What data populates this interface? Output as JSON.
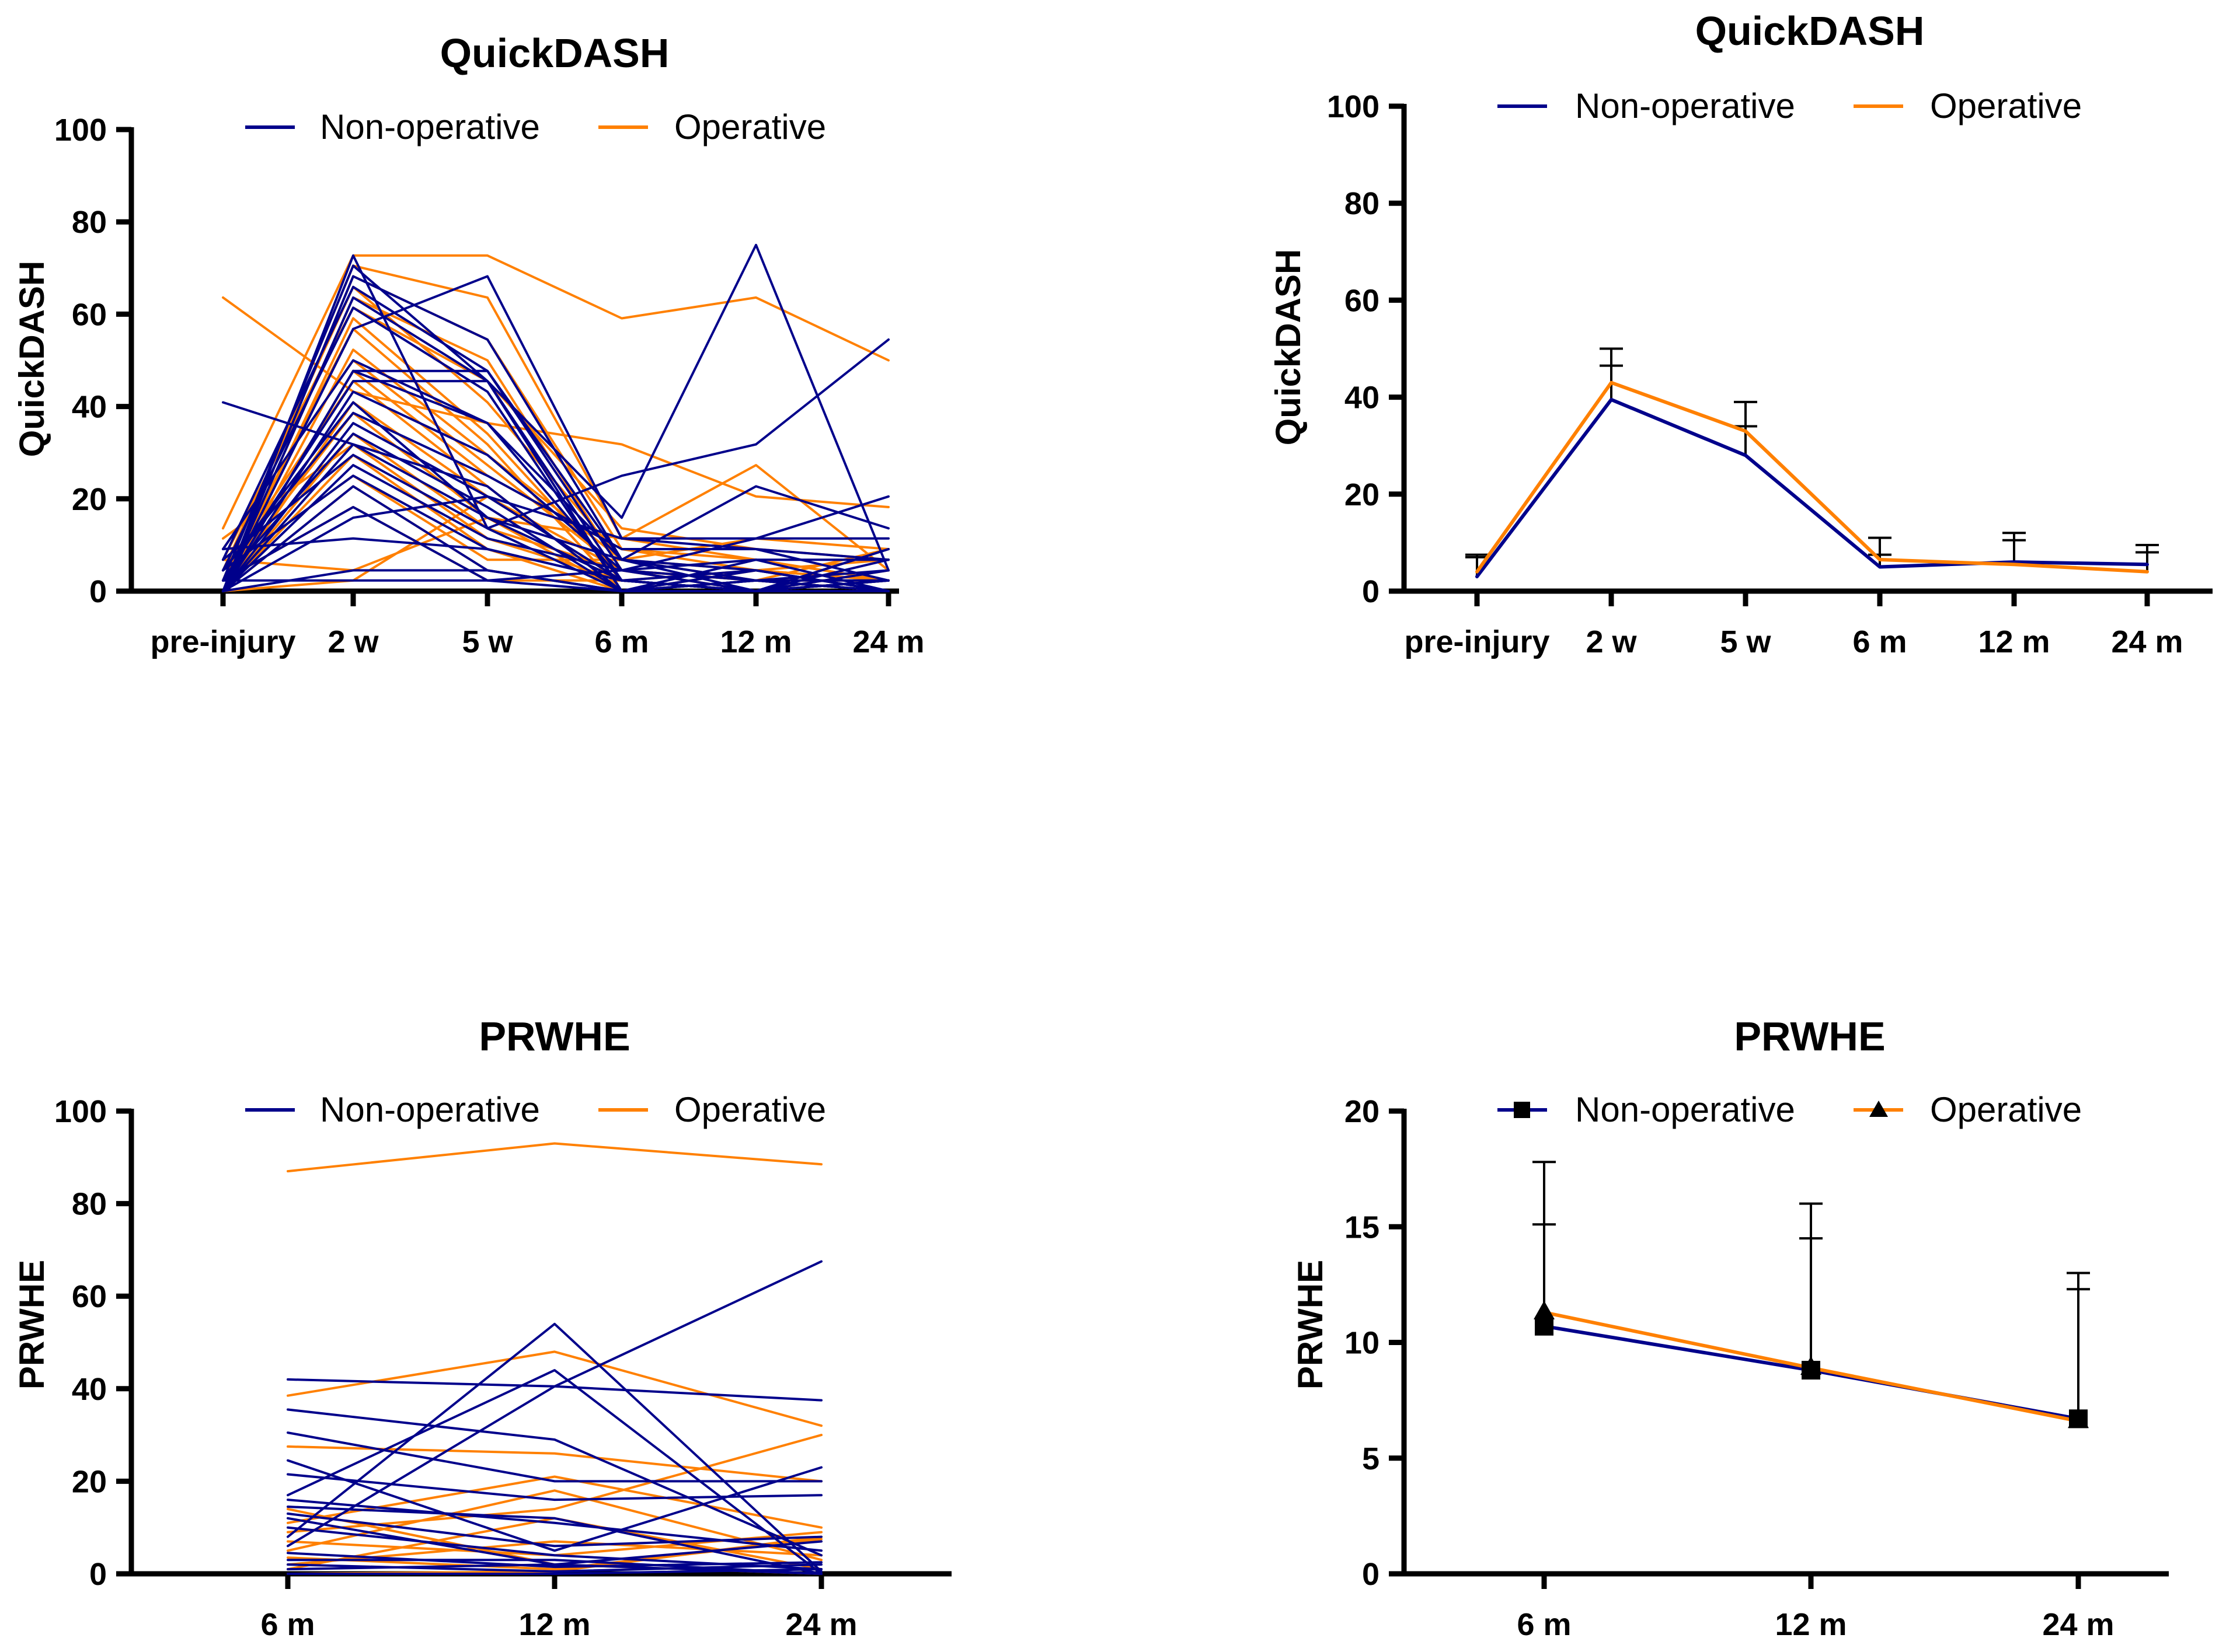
{
  "colors": {
    "non_operative": "#00008B",
    "operative": "#FF8000",
    "axis": "#000000"
  },
  "chart_data": [
    {
      "id": "A",
      "type": "line",
      "title": "QuickDASH",
      "xlabel": "",
      "ylabel": "QuickDASH",
      "categories": [
        "pre-injury",
        "2 w",
        "5 w",
        "6 m",
        "12 m",
        "24 m"
      ],
      "ylim": [
        0,
        100
      ],
      "yticks": [
        0,
        20,
        40,
        60,
        80,
        100
      ],
      "legend": {
        "position": "top",
        "entries": [
          {
            "name": "Non-operative",
            "color": "#00008B",
            "marker": "none"
          },
          {
            "name": "Operative",
            "color": "#FF8000",
            "marker": "none"
          }
        ]
      },
      "line_width": 4,
      "series": [
        {
          "group": "Operative",
          "values": [
            63.6,
            43.2,
            36.4,
            31.8,
            20.5,
            18.2
          ]
        },
        {
          "group": "Operative",
          "values": [
            13.6,
            72.7,
            72.7,
            59.1,
            63.6,
            50.0
          ]
        },
        {
          "group": "Operative",
          "values": [
            2.3,
            70.5,
            63.6,
            11.4,
            27.3,
            4.5
          ]
        },
        {
          "group": "Operative",
          "values": [
            0.0,
            68.2,
            54.5,
            9.1,
            6.8,
            2.3
          ]
        },
        {
          "group": "Operative",
          "values": [
            4.5,
            65.9,
            40.9,
            6.8,
            4.5,
            0.0
          ]
        },
        {
          "group": "Operative",
          "values": [
            0.0,
            63.6,
            50.0,
            4.5,
            2.3,
            0.0
          ]
        },
        {
          "group": "Operative",
          "values": [
            6.8,
            61.4,
            45.5,
            13.6,
            9.1,
            6.8
          ]
        },
        {
          "group": "Operative",
          "values": [
            0.0,
            59.1,
            34.1,
            2.3,
            0.0,
            2.3
          ]
        },
        {
          "group": "Operative",
          "values": [
            2.3,
            56.8,
            31.8,
            0.0,
            0.0,
            0.0
          ]
        },
        {
          "group": "Operative",
          "values": [
            0.0,
            52.3,
            29.5,
            6.8,
            11.4,
            9.1
          ]
        },
        {
          "group": "Operative",
          "values": [
            9.1,
            50.0,
            27.3,
            4.5,
            2.3,
            2.3
          ]
        },
        {
          "group": "Operative",
          "values": [
            0.0,
            47.7,
            25.0,
            9.1,
            4.5,
            2.3
          ]
        },
        {
          "group": "Operative",
          "values": [
            4.5,
            45.5,
            22.7,
            0.0,
            2.3,
            0.0
          ]
        },
        {
          "group": "Operative",
          "values": [
            0.0,
            40.9,
            20.5,
            2.3,
            0.0,
            4.5
          ]
        },
        {
          "group": "Operative",
          "values": [
            2.3,
            38.6,
            15.9,
            11.4,
            6.8,
            2.3
          ]
        },
        {
          "group": "Operative",
          "values": [
            0.0,
            34.1,
            13.6,
            4.5,
            0.0,
            0.0
          ]
        },
        {
          "group": "Operative",
          "values": [
            11.4,
            31.8,
            11.4,
            2.3,
            4.5,
            6.8
          ]
        },
        {
          "group": "Operative",
          "values": [
            0.0,
            29.5,
            9.1,
            0.0,
            0.0,
            0.0
          ]
        },
        {
          "group": "Operative",
          "values": [
            4.5,
            25.0,
            6.8,
            6.8,
            2.3,
            9.1
          ]
        },
        {
          "group": "Operative",
          "values": [
            0.0,
            22.7,
            4.5,
            0.0,
            0.0,
            2.3
          ]
        },
        {
          "group": "Operative",
          "values": [
            2.3,
            18.2,
            2.3,
            2.3,
            0.0,
            0.0
          ]
        },
        {
          "group": "Operative",
          "values": [
            6.8,
            4.5,
            15.9,
            0.0,
            4.5,
            2.3
          ]
        },
        {
          "group": "Operative",
          "values": [
            0.0,
            2.3,
            20.5,
            4.5,
            2.3,
            0.0
          ]
        },
        {
          "group": "Non-operative",
          "values": [
            40.9,
            31.8,
            22.7,
            0.0,
            0.0,
            0.0
          ]
        },
        {
          "group": "Non-operative",
          "values": [
            0.0,
            72.7,
            13.6,
            25.0,
            31.8,
            54.5
          ]
        },
        {
          "group": "Non-operative",
          "values": [
            2.3,
            70.5,
            45.5,
            15.9,
            75.0,
            4.5
          ]
        },
        {
          "group": "Non-operative",
          "values": [
            0.0,
            68.2,
            54.5,
            6.8,
            22.7,
            13.6
          ]
        },
        {
          "group": "Non-operative",
          "values": [
            6.8,
            65.9,
            47.7,
            4.5,
            11.4,
            20.5
          ]
        },
        {
          "group": "Non-operative",
          "values": [
            0.0,
            63.6,
            45.5,
            2.3,
            0.0,
            9.1
          ]
        },
        {
          "group": "Non-operative",
          "values": [
            4.5,
            61.4,
            43.2,
            0.0,
            2.3,
            4.5
          ]
        },
        {
          "group": "Non-operative",
          "values": [
            0.0,
            56.8,
            68.2,
            11.4,
            11.4,
            11.4
          ]
        },
        {
          "group": "Non-operative",
          "values": [
            9.1,
            50.0,
            36.4,
            2.3,
            4.5,
            0.0
          ]
        },
        {
          "group": "Non-operative",
          "values": [
            0.0,
            47.7,
            47.7,
            6.8,
            0.0,
            2.3
          ]
        },
        {
          "group": "Non-operative",
          "values": [
            2.3,
            45.5,
            45.5,
            0.0,
            6.8,
            6.8
          ]
        },
        {
          "group": "Non-operative",
          "values": [
            0.0,
            43.2,
            29.5,
            4.5,
            2.3,
            0.0
          ]
        },
        {
          "group": "Non-operative",
          "values": [
            4.5,
            38.6,
            25.0,
            9.1,
            9.1,
            2.3
          ]
        },
        {
          "group": "Non-operative",
          "values": [
            0.0,
            36.4,
            20.5,
            2.3,
            0.0,
            4.5
          ]
        },
        {
          "group": "Non-operative",
          "values": [
            2.3,
            34.1,
            18.2,
            0.0,
            4.5,
            0.0
          ]
        },
        {
          "group": "Non-operative",
          "values": [
            0.0,
            31.8,
            15.9,
            6.8,
            2.3,
            2.3
          ]
        },
        {
          "group": "Non-operative",
          "values": [
            6.8,
            29.5,
            13.6,
            0.0,
            0.0,
            6.8
          ]
        },
        {
          "group": "Non-operative",
          "values": [
            0.0,
            27.3,
            11.4,
            4.5,
            6.8,
            0.0
          ]
        },
        {
          "group": "Non-operative",
          "values": [
            4.5,
            25.0,
            9.1,
            2.3,
            0.0,
            2.3
          ]
        },
        {
          "group": "Non-operative",
          "values": [
            0.0,
            22.7,
            4.5,
            0.0,
            2.3,
            0.0
          ]
        },
        {
          "group": "Non-operative",
          "values": [
            2.3,
            18.2,
            2.3,
            4.5,
            0.0,
            0.0
          ]
        },
        {
          "group": "Non-operative",
          "values": [
            0.0,
            15.9,
            20.5,
            11.4,
            9.1,
            6.8
          ]
        },
        {
          "group": "Non-operative",
          "values": [
            9.1,
            11.4,
            9.1,
            2.3,
            0.0,
            2.3
          ]
        },
        {
          "group": "Non-operative",
          "values": [
            0.0,
            4.5,
            4.5,
            0.0,
            2.3,
            0.0
          ]
        },
        {
          "group": "Non-operative",
          "values": [
            2.3,
            2.3,
            2.3,
            0.0,
            0.0,
            0.0
          ]
        },
        {
          "group": "Non-operative",
          "values": [
            0.0,
            47.7,
            36.4,
            6.8,
            4.5,
            0.0
          ]
        },
        {
          "group": "Non-operative",
          "values": [
            4.5,
            40.9,
            15.9,
            2.3,
            0.0,
            9.1
          ]
        }
      ]
    },
    {
      "id": "B",
      "type": "line",
      "title": "QuickDASH",
      "xlabel": "",
      "ylabel": "QuickDASH",
      "categories": [
        "pre-injury",
        "2 w",
        "5 w",
        "6 m",
        "12 m",
        "24 m"
      ],
      "ylim": [
        0,
        100
      ],
      "yticks": [
        0,
        20,
        40,
        60,
        80,
        100
      ],
      "legend": {
        "position": "top",
        "entries": [
          {
            "name": "Non-operative",
            "color": "#00008B",
            "marker": "none"
          },
          {
            "name": "Operative",
            "color": "#FF8000",
            "marker": "none"
          }
        ]
      },
      "line_width": 6,
      "series": [
        {
          "name": "Non-operative",
          "values": [
            3.0,
            39.5,
            28.0,
            5.0,
            6.0,
            5.5
          ],
          "error_upper": [
            7.0,
            46.5,
            34.0,
            7.5,
            10.5,
            8.0
          ]
        },
        {
          "name": "Operative",
          "values": [
            4.0,
            43.0,
            33.0,
            6.5,
            5.5,
            4.0
          ],
          "error_upper": [
            7.5,
            50.0,
            39.0,
            11.0,
            12.0,
            9.5
          ]
        }
      ]
    },
    {
      "id": "C",
      "type": "line",
      "title": "PRWHE",
      "xlabel": "",
      "ylabel": "PRWHE",
      "categories": [
        "6 m",
        "12 m",
        "24 m"
      ],
      "ylim": [
        0,
        100
      ],
      "yticks": [
        0,
        20,
        40,
        60,
        80,
        100
      ],
      "legend": {
        "position": "top",
        "entries": [
          {
            "name": "Non-operative",
            "color": "#00008B",
            "marker": "none"
          },
          {
            "name": "Operative",
            "color": "#FF8000",
            "marker": "none"
          }
        ]
      },
      "line_width": 4,
      "series": [
        {
          "group": "Operative",
          "values": [
            87.0,
            93.0,
            88.5
          ]
        },
        {
          "group": "Operative",
          "values": [
            38.5,
            48.0,
            32.0
          ]
        },
        {
          "group": "Operative",
          "values": [
            27.5,
            26.0,
            20.0
          ]
        },
        {
          "group": "Operative",
          "values": [
            11.0,
            21.0,
            10.0
          ]
        },
        {
          "group": "Operative",
          "values": [
            9.0,
            14.0,
            30.0
          ]
        },
        {
          "group": "Operative",
          "values": [
            7.0,
            4.0,
            9.0
          ]
        },
        {
          "group": "Operative",
          "values": [
            5.0,
            18.0,
            3.0
          ]
        },
        {
          "group": "Operative",
          "values": [
            3.5,
            1.0,
            7.5
          ]
        },
        {
          "group": "Operative",
          "values": [
            1.0,
            12.0,
            1.0
          ]
        },
        {
          "group": "Operative",
          "values": [
            0.0,
            0.5,
            8.0
          ]
        },
        {
          "group": "Operative",
          "values": [
            14.0,
            2.0,
            0.0
          ]
        },
        {
          "group": "Operative",
          "values": [
            2.0,
            7.0,
            4.0
          ]
        },
        {
          "group": "Non-operative",
          "values": [
            42.0,
            40.5,
            37.5
          ]
        },
        {
          "group": "Non-operative",
          "values": [
            35.5,
            29.0,
            4.0
          ]
        },
        {
          "group": "Non-operative",
          "values": [
            30.5,
            20.0,
            20.0
          ]
        },
        {
          "group": "Non-operative",
          "values": [
            24.5,
            5.0,
            23.0
          ]
        },
        {
          "group": "Non-operative",
          "values": [
            21.5,
            16.0,
            17.0
          ]
        },
        {
          "group": "Non-operative",
          "values": [
            17.0,
            44.0,
            0.0
          ]
        },
        {
          "group": "Non-operative",
          "values": [
            16.0,
            11.0,
            5.0
          ]
        },
        {
          "group": "Non-operative",
          "values": [
            14.5,
            12.0,
            0.0
          ]
        },
        {
          "group": "Non-operative",
          "values": [
            12.0,
            2.0,
            7.0
          ]
        },
        {
          "group": "Non-operative",
          "values": [
            10.0,
            4.0,
            1.0
          ]
        },
        {
          "group": "Non-operative",
          "values": [
            8.0,
            54.0,
            0.5
          ]
        },
        {
          "group": "Non-operative",
          "values": [
            6.0,
            40.5,
            67.5
          ]
        },
        {
          "group": "Non-operative",
          "values": [
            4.5,
            1.5,
            2.5
          ]
        },
        {
          "group": "Non-operative",
          "values": [
            3.0,
            3.0,
            0.0
          ]
        },
        {
          "group": "Non-operative",
          "values": [
            2.0,
            0.5,
            2.0
          ]
        },
        {
          "group": "Non-operative",
          "values": [
            1.0,
            2.0,
            0.0
          ]
        },
        {
          "group": "Non-operative",
          "values": [
            0.0,
            0.0,
            1.0
          ]
        },
        {
          "group": "Non-operative",
          "values": [
            13.0,
            6.0,
            8.0
          ]
        }
      ]
    },
    {
      "id": "D",
      "type": "line",
      "title": "PRWHE",
      "xlabel": "",
      "ylabel": "PRWHE",
      "categories": [
        "6 m",
        "12 m",
        "24 m"
      ],
      "ylim": [
        0,
        20
      ],
      "yticks": [
        0,
        5,
        10,
        15,
        20
      ],
      "legend": {
        "position": "top",
        "entries": [
          {
            "name": "Non-operative",
            "color": "#00008B",
            "marker": "square"
          },
          {
            "name": "Operative",
            "color": "#FF8000",
            "marker": "triangle"
          }
        ]
      },
      "line_width": 6,
      "series": [
        {
          "name": "Non-operative",
          "marker": "square",
          "values": [
            10.7,
            8.8,
            6.7
          ],
          "error_upper": [
            15.1,
            14.5,
            12.3
          ]
        },
        {
          "name": "Operative",
          "marker": "triangle",
          "values": [
            11.3,
            8.9,
            6.6
          ],
          "error_upper": [
            17.8,
            16.0,
            13.0
          ]
        }
      ]
    }
  ]
}
